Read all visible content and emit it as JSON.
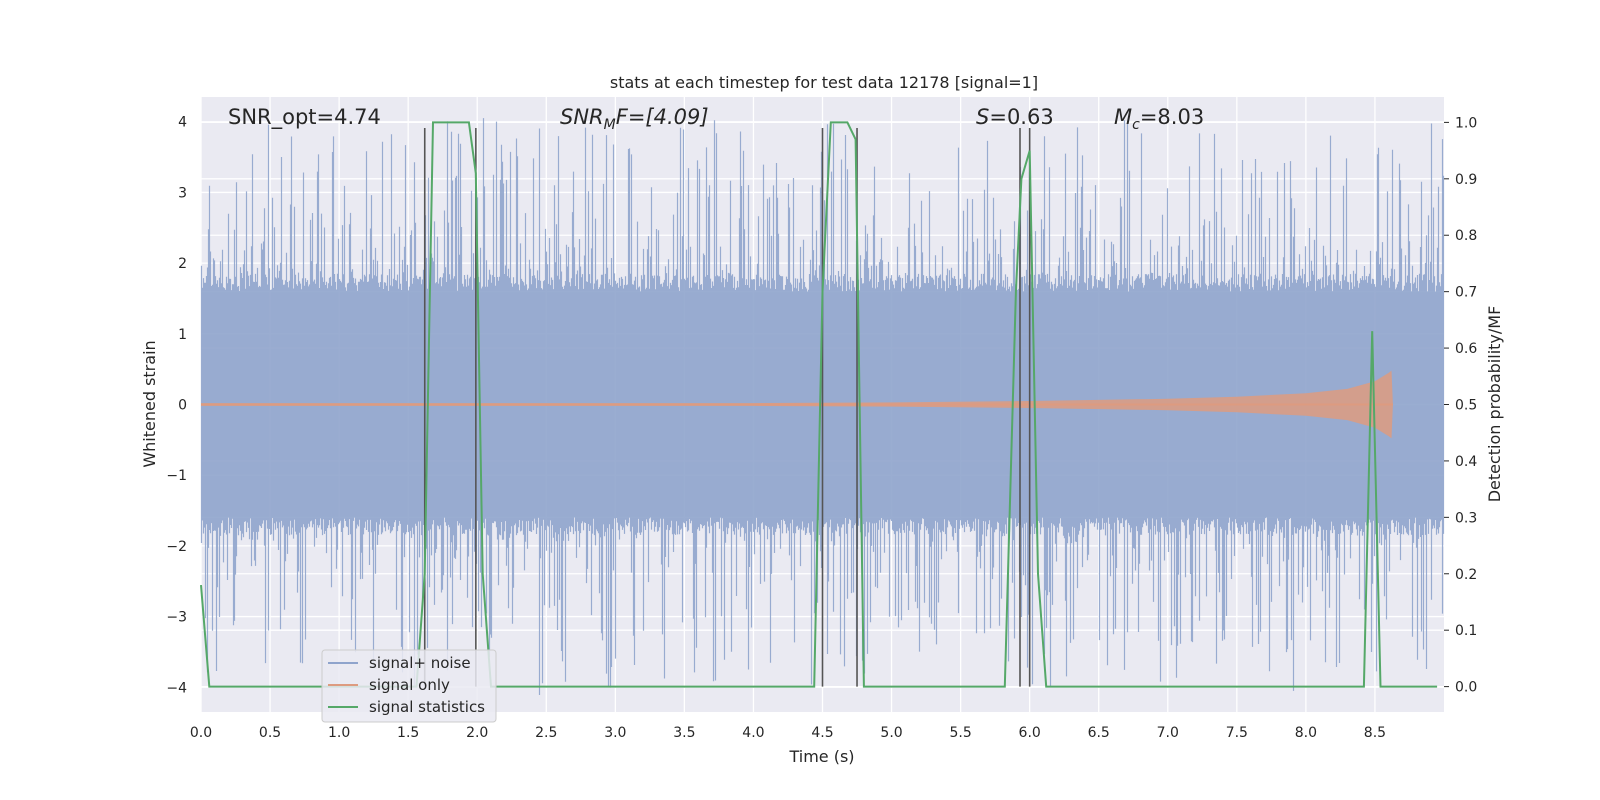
{
  "chart_data": {
    "type": "line",
    "title": "stats at each timestep for test data 12178 [signal=1]",
    "xlabel": "Time (s)",
    "ylabel_left": "Whitened strain",
    "ylabel_right": "Detection probability/MF",
    "xlim": [
      0.0,
      9.0
    ],
    "ylim_left": [
      -4.35,
      4.35
    ],
    "ylim_right": [
      -0.045,
      1.045
    ],
    "xticks": [
      "0.0",
      "0.5",
      "1.0",
      "1.5",
      "2.0",
      "2.5",
      "3.0",
      "3.5",
      "4.0",
      "4.5",
      "5.0",
      "5.5",
      "6.0",
      "6.5",
      "7.0",
      "7.5",
      "8.0",
      "8.5"
    ],
    "yticks_left": [
      "4",
      "3",
      "2",
      "1",
      "0",
      "−1",
      "−2",
      "−3",
      "−4"
    ],
    "yticks_right": [
      "1.0",
      "0.9",
      "0.8",
      "0.7",
      "0.6",
      "0.5",
      "0.4",
      "0.3",
      "0.2",
      "0.1",
      "0.0"
    ],
    "grid": true,
    "legend_position": "lower-left",
    "annotations": {
      "snr_opt": "SNR_opt=4.74",
      "snr_mf_main": "SNR",
      "snr_mf_sub": "M",
      "snr_mf_rest": "F=[4.09]",
      "s_main": "S",
      "s_rest": "=0.63",
      "mc_main": "M",
      "mc_sub": "c",
      "mc_rest": "=8.03"
    },
    "series": [
      {
        "name": "signal+ noise",
        "color": "#8fa4cc",
        "description_level": "noise band approx ±1.6 with spikes to ±3.9",
        "envelope": [
          -1.6,
          1.6
        ],
        "spike_range": [
          -3.9,
          3.9
        ]
      },
      {
        "name": "signal only",
        "color": "#dd9b80",
        "x": [
          0.0,
          4.0,
          5.0,
          6.0,
          7.0,
          7.5,
          8.0,
          8.3,
          8.5,
          8.6,
          8.62,
          8.63
        ],
        "amplitude": [
          0.02,
          0.02,
          0.03,
          0.05,
          0.08,
          0.11,
          0.16,
          0.22,
          0.33,
          0.45,
          0.48,
          0.0
        ]
      },
      {
        "name": "signal statistics",
        "color": "#55a868",
        "x": [
          0.0,
          0.06,
          0.12,
          1.56,
          1.62,
          1.68,
          1.94,
          1.99,
          2.04,
          2.1,
          2.2,
          4.44,
          4.5,
          4.56,
          4.68,
          4.74,
          4.8,
          4.86,
          5.82,
          5.9,
          5.94,
          6.0,
          6.06,
          6.12,
          8.42,
          8.48,
          8.54,
          8.6,
          8.9,
          8.95
        ],
        "y": [
          0.18,
          0.0,
          0.0,
          0.0,
          0.2,
          1.0,
          1.0,
          0.91,
          0.2,
          0.0,
          0.0,
          0.0,
          0.7,
          1.0,
          1.0,
          0.97,
          0.0,
          0.0,
          0.0,
          0.7,
          0.9,
          0.95,
          0.2,
          0.0,
          0.0,
          0.63,
          0.0,
          0.0,
          0.0,
          0.0
        ]
      }
    ],
    "vertical_markers": [
      1.62,
      1.99,
      4.5,
      4.75,
      5.93,
      6.0
    ]
  }
}
